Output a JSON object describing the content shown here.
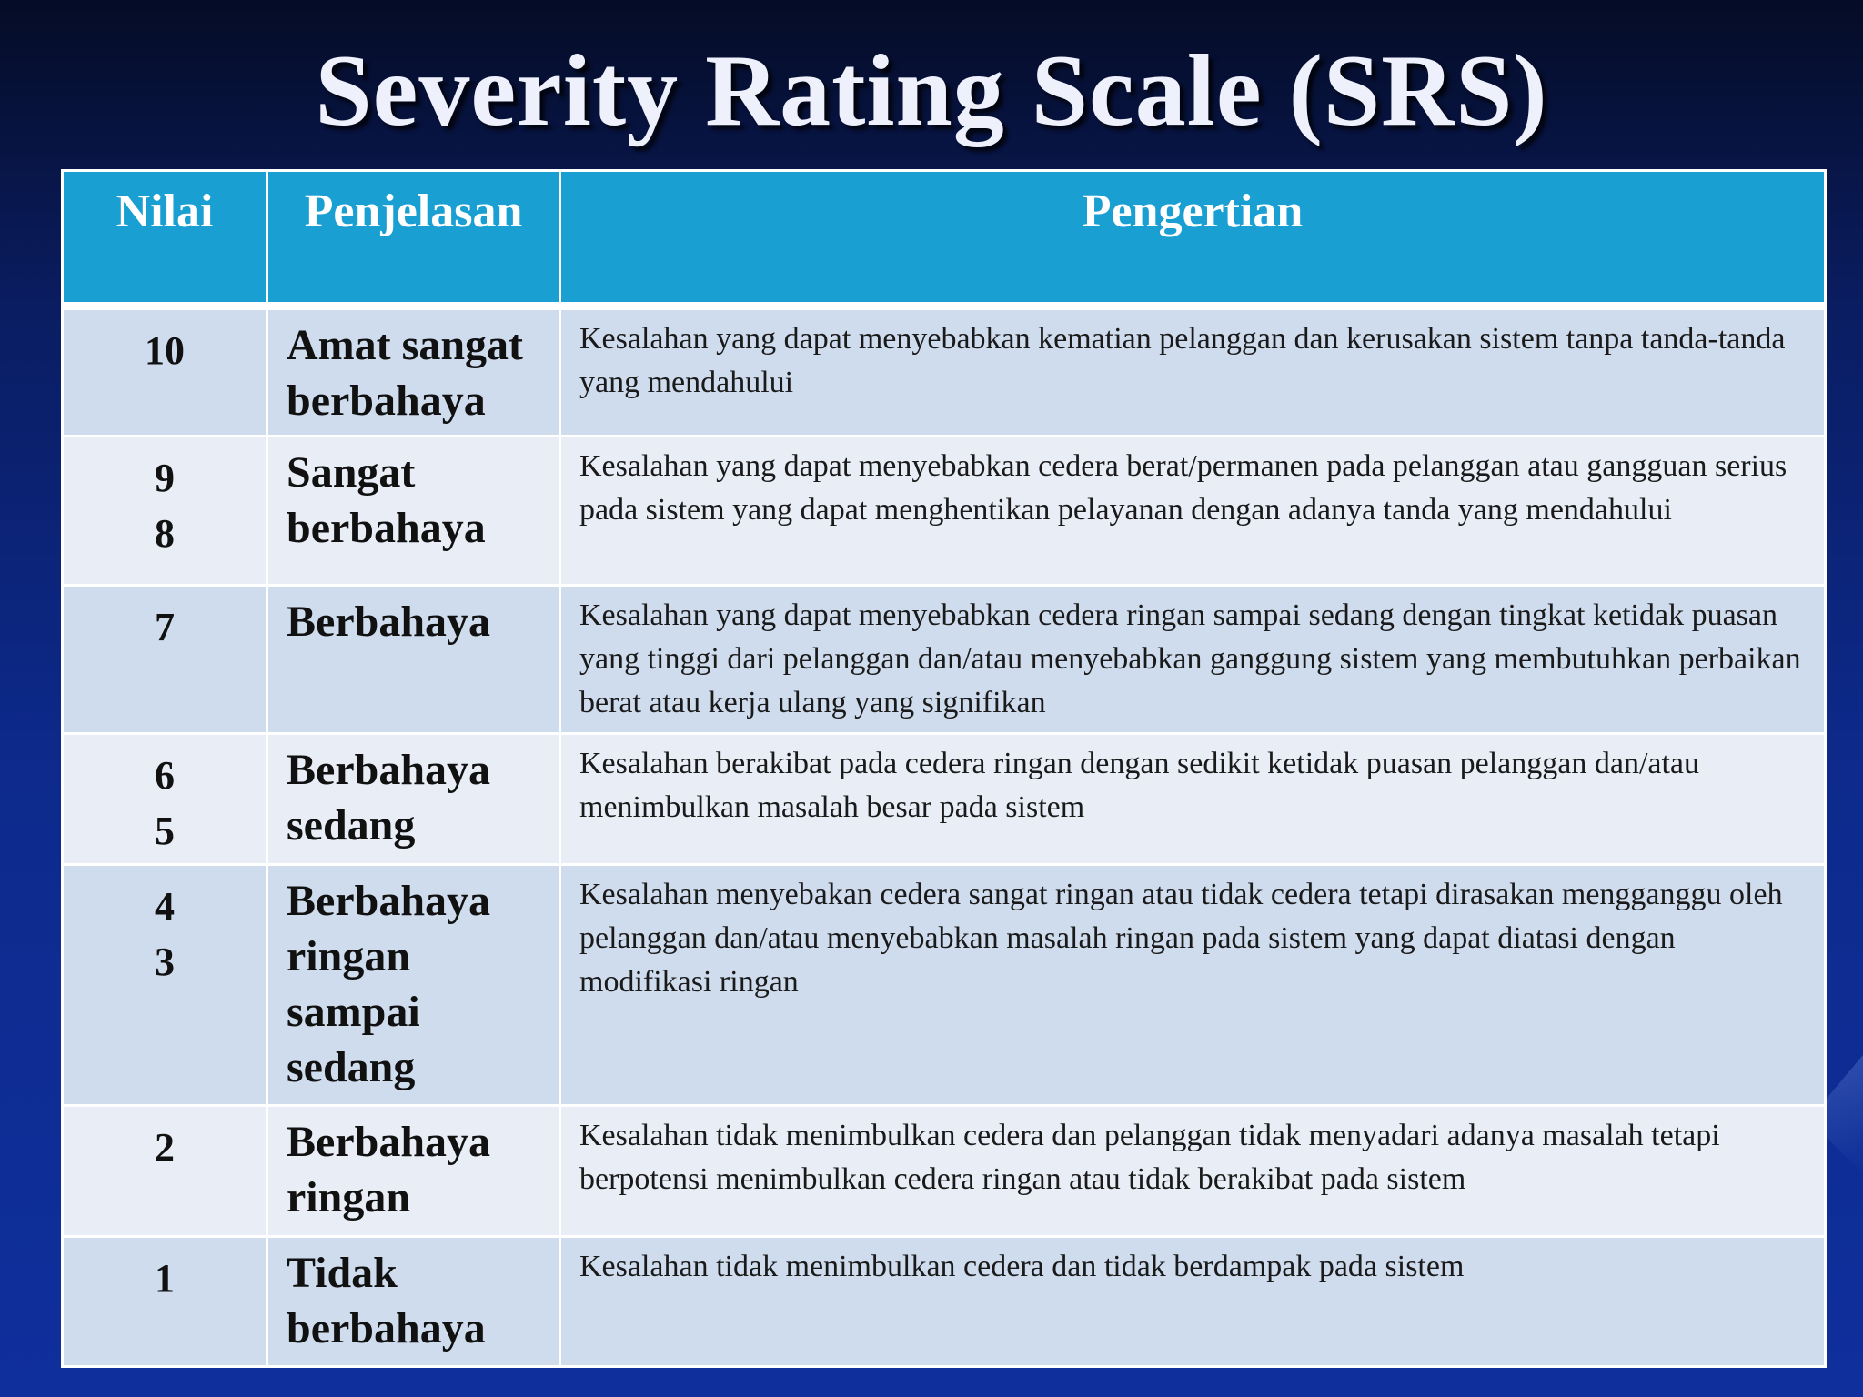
{
  "title": "Severity Rating Scale (SRS)",
  "table": {
    "headers": [
      "Nilai",
      "Penjelasan",
      "Pengertian"
    ],
    "rows": [
      {
        "nilai": [
          "10"
        ],
        "penjelasan": "Amat sangat berbahaya",
        "pengertian": "Kesalahan yang dapat menyebabkan kematian pelanggan dan kerusakan sistem tanpa tanda-tanda yang mendahului"
      },
      {
        "nilai": [
          "9",
          "8"
        ],
        "penjelasan": "Sangat berbahaya",
        "pengertian": "Kesalahan yang dapat menyebabkan cedera berat/permanen pada pelanggan atau gangguan serius pada sistem yang dapat menghentikan pelayanan dengan adanya tanda yang mendahului"
      },
      {
        "nilai": [
          "7"
        ],
        "penjelasan": "Berbahaya",
        "pengertian": "Kesalahan yang dapat menyebabkan cedera ringan sampai sedang dengan tingkat ketidak puasan yang tinggi dari pelanggan  dan/atau menyebabkan ganggung sistem yang membutuhkan perbaikan berat atau kerja ulang yang signifikan"
      },
      {
        "nilai": [
          "6",
          "5"
        ],
        "penjelasan": "Berbahaya sedang",
        "pengertian": "Kesalahan berakibat pada cedera ringan dengan sedikit ketidak puasan pelanggan dan/atau menimbulkan masalah besar pada sistem"
      },
      {
        "nilai": [
          "4",
          "3"
        ],
        "penjelasan": "Berbahaya ringan sampai sedang",
        "pengertian": "Kesalahan menyebakan cedera sangat ringan atau tidak cedera tetapi dirasakan mengganggu oleh  pelanggan dan/atau menyebabkan masalah ringan pada sistem yang dapat diatasi dengan modifikasi ringan"
      },
      {
        "nilai": [
          "2"
        ],
        "penjelasan": "Berbahaya ringan",
        "pengertian": "Kesalahan tidak menimbulkan cedera dan pelanggan tidak menyadari adanya masalah tetapi berpotensi menimbulkan cedera ringan atau tidak berakibat pada sistem"
      },
      {
        "nilai": [
          "1"
        ],
        "penjelasan": "Tidak berbahaya",
        "pengertian": "Kesalahan tidak menimbulkan cedera dan tidak berdampak pada sistem"
      }
    ]
  }
}
